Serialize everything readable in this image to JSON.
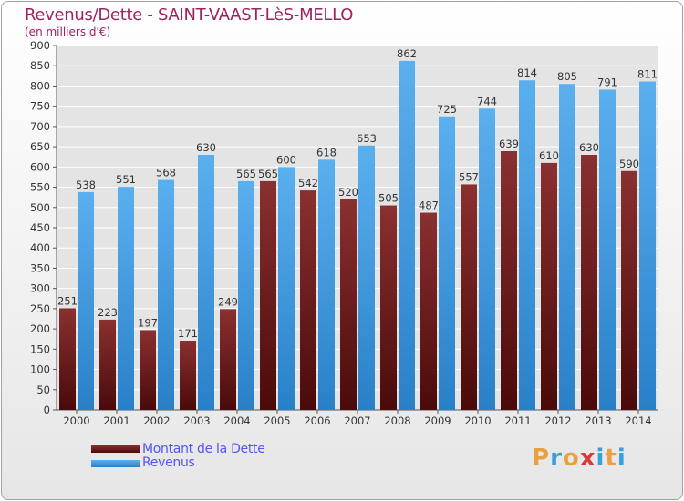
{
  "header": {
    "title": "Revenus/Dette - SAINT-VAAST-LèS-MELLO",
    "subtitle": "(en milliers d'€)"
  },
  "legend": {
    "dette_label": "Montant de la Dette",
    "revenus_label": "Revenus"
  },
  "logo": {
    "letters": [
      "P",
      "r",
      "o",
      "x",
      "i",
      "t",
      "i"
    ],
    "colors": [
      "#e8a040",
      "#3aa0d8",
      "#e8a040",
      "#d83a3a",
      "#3aa0d8",
      "#e8a040",
      "#3aa0d8"
    ]
  },
  "colors": {
    "dette": "#7a2a2a",
    "revenus": "#4aa0e0"
  },
  "chart_data": {
    "type": "bar",
    "title": "Revenus/Dette - SAINT-VAAST-LèS-MELLO",
    "ylabel": "(en milliers d'€)",
    "categories": [
      "2000",
      "2001",
      "2002",
      "2003",
      "2004",
      "2005",
      "2006",
      "2007",
      "2008",
      "2009",
      "2010",
      "2011",
      "2012",
      "2013",
      "2014"
    ],
    "series": [
      {
        "name": "Montant de la Dette",
        "values": [
          251,
          223,
          197,
          171,
          249,
          565,
          542,
          520,
          505,
          487,
          557,
          639,
          610,
          630,
          590
        ]
      },
      {
        "name": "Revenus",
        "values": [
          538,
          551,
          568,
          630,
          565,
          600,
          618,
          653,
          862,
          725,
          744,
          814,
          805,
          791,
          811
        ]
      }
    ],
    "ylim": [
      0,
      900
    ],
    "yticks": [
      0,
      50,
      100,
      150,
      200,
      250,
      300,
      350,
      400,
      450,
      500,
      550,
      600,
      650,
      700,
      750,
      800,
      850,
      900
    ],
    "grid": true,
    "legend_position": "bottom-left"
  }
}
